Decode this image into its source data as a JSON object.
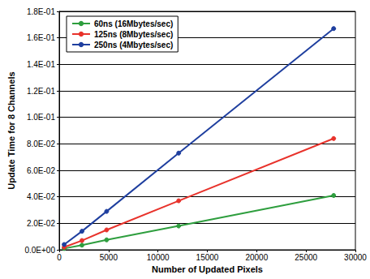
{
  "chart_data": {
    "type": "line",
    "x_label": "Number of Updated Pixels",
    "y_label": "Update Time for 8 Channels",
    "series": [
      {
        "name": "60ns (16Mbytes/sec)",
        "color": "#2e9e3e",
        "marker": "circle",
        "x": [
          500,
          2300,
          4800,
          12100,
          27800
        ],
        "values": [
          0.001,
          0.0035,
          0.0075,
          0.018,
          0.041
        ]
      },
      {
        "name": "125ns (8Mbytes/sec)",
        "color": "#e8322b",
        "marker": "circle",
        "x": [
          500,
          2300,
          4800,
          12100,
          27800
        ],
        "values": [
          0.002,
          0.007,
          0.015,
          0.037,
          0.084
        ]
      },
      {
        "name": "250ns (4Mbytes/sec)",
        "color": "#1f3f9f",
        "marker": "circle",
        "x": [
          500,
          2300,
          4800,
          12100,
          27800
        ],
        "values": [
          0.004,
          0.014,
          0.029,
          0.073,
          0.167
        ]
      }
    ],
    "xlim": [
      0,
      30000
    ],
    "xticks": [
      0,
      5000,
      10000,
      15000,
      20000,
      25000,
      30000
    ],
    "ylim": [
      0,
      0.18
    ],
    "yticks": [
      {
        "value": 0,
        "label": "0.0E+00"
      },
      {
        "value": 0.02,
        "label": "2.0E-02"
      },
      {
        "value": 0.04,
        "label": "4.0E-02"
      },
      {
        "value": 0.06,
        "label": "6.0E-02"
      },
      {
        "value": 0.08,
        "label": "8.0E-02"
      },
      {
        "value": 0.1,
        "label": "1.0E-01"
      },
      {
        "value": 0.12,
        "label": "1.2E-01"
      },
      {
        "value": 0.14,
        "label": "1.4E-01"
      },
      {
        "value": 0.16,
        "label": "1.6E-01"
      },
      {
        "value": 0.18,
        "label": "1.8E-01"
      }
    ],
    "grid": true,
    "legend": "upper left"
  }
}
